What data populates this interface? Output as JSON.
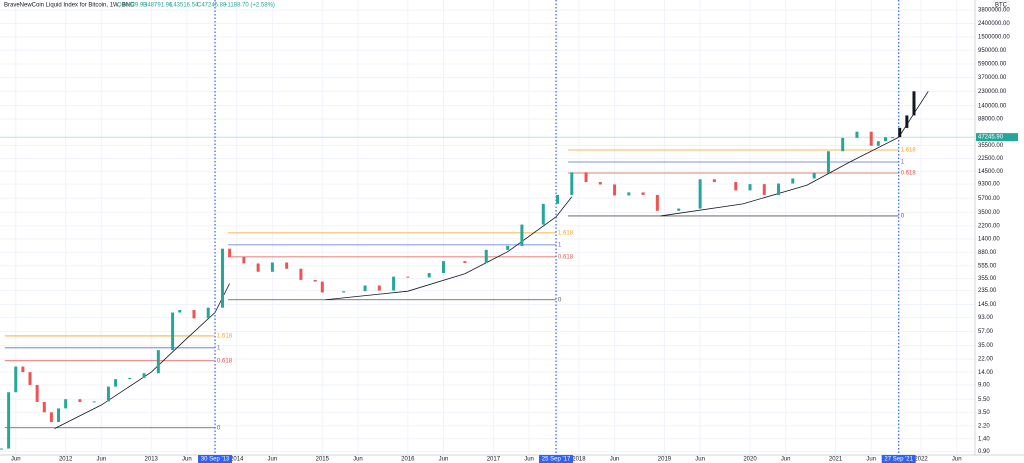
{
  "header": {
    "title": "BraveNewCoin Liquid Index for Bitcoin, 1W, BNC",
    "open": "O46039.93",
    "high": "H48791.96",
    "low": "L43516.54",
    "close": "C47245.88",
    "change": "+1188.70 (+2.58%)"
  },
  "chart_data": {
    "type": "line",
    "log_scale": true,
    "grid": true,
    "currency": "BTC",
    "up_color": "#26a69a",
    "down_color": "#ef5350",
    "x": [
      "2011-04",
      "2011-05",
      "2011-06",
      "2011-07",
      "2011-08",
      "2011-09",
      "2011-10",
      "2011-11",
      "2011-12",
      "2012-01",
      "2012-03",
      "2012-05",
      "2012-07",
      "2012-08",
      "2012-10",
      "2012-12",
      "2013-02",
      "2013-04",
      "2013-05",
      "2013-07",
      "2013-09",
      "2013-11",
      "2013-12",
      "2014-02",
      "2014-04",
      "2014-06",
      "2014-08",
      "2014-10",
      "2014-12",
      "2015-01",
      "2015-04",
      "2015-07",
      "2015-09",
      "2015-11",
      "2016-01",
      "2016-04",
      "2016-06",
      "2016-09",
      "2016-12",
      "2017-03",
      "2017-05",
      "2017-08",
      "2017-10",
      "2017-12",
      "2018-02",
      "2018-04",
      "2018-06",
      "2018-08",
      "2018-10",
      "2018-12",
      "2019-03",
      "2019-06",
      "2019-08",
      "2019-11",
      "2020-01",
      "2020-03",
      "2020-05",
      "2020-07",
      "2020-10",
      "2020-12",
      "2021-02",
      "2021-04",
      "2021-06",
      "2021-07",
      "2021-08",
      "2021-09"
    ],
    "values": [
      1.0,
      7,
      17,
      14,
      9,
      5,
      3.5,
      2.5,
      4,
      5.5,
      5,
      5.1,
      8.5,
      11,
      11.5,
      13.5,
      30,
      110,
      120,
      90,
      130,
      1000,
      750,
      600,
      450,
      620,
      500,
      340,
      320,
      220,
      230,
      280,
      235,
      380,
      370,
      430,
      650,
      610,
      960,
      1100,
      2300,
      4700,
      6400,
      14000,
      10000,
      9200,
      6300,
      7000,
      6400,
      3700,
      4000,
      11000,
      10000,
      7500,
      9300,
      6400,
      9500,
      11300,
      13800,
      29000,
      46000,
      57000,
      35000,
      41000,
      47000,
      47245.88
    ],
    "projection": {
      "color": "#131722",
      "x": [
        "2021-09",
        "2021-10",
        "2021-11",
        "2021-12"
      ],
      "values": [
        47245.88,
        65000,
        100000,
        230000
      ]
    },
    "last_price": {
      "value": 47245.9,
      "label": "47245.90"
    },
    "xlim": [
      "2011-03-25",
      "2022-08-18"
    ],
    "ylim": [
      0.8,
      5400000
    ],
    "xticks": [
      {
        "value": "2011-06",
        "label": "Jun"
      },
      {
        "value": "2012-01",
        "label": "2012"
      },
      {
        "value": "2012-06",
        "label": "Jun"
      },
      {
        "value": "2013-01",
        "label": "2013"
      },
      {
        "value": "2013-06",
        "label": "Jun"
      },
      {
        "value": "2014-01",
        "label": "2014"
      },
      {
        "value": "2014-06",
        "label": "Jun"
      },
      {
        "value": "2015-01",
        "label": "2015"
      },
      {
        "value": "2015-06",
        "label": "Jun"
      },
      {
        "value": "2016-01",
        "label": "2016"
      },
      {
        "value": "2016-06",
        "label": "Jun"
      },
      {
        "value": "2017-01",
        "label": "2017"
      },
      {
        "value": "2017-06",
        "label": "Jun"
      },
      {
        "value": "2018-01",
        "label": "2018"
      },
      {
        "value": "2018-06",
        "label": "Jun"
      },
      {
        "value": "2019-01",
        "label": "2019"
      },
      {
        "value": "2019-06",
        "label": "Jun"
      },
      {
        "value": "2020-01",
        "label": "2020"
      },
      {
        "value": "2020-06",
        "label": "Jun"
      },
      {
        "value": "2021-01",
        "label": "2021"
      },
      {
        "value": "2021-06",
        "label": "Jun"
      },
      {
        "value": "2022-01",
        "label": "2022"
      },
      {
        "value": "2022-06",
        "label": "Jun"
      }
    ],
    "yticks": [
      {
        "value": 0.9,
        "label": "0.90"
      },
      {
        "value": 1.4,
        "label": "1.40"
      },
      {
        "value": 2.2,
        "label": "2.20"
      },
      {
        "value": 3.5,
        "label": "3.50"
      },
      {
        "value": 5.5,
        "label": "5.50"
      },
      {
        "value": 9,
        "label": "9.00"
      },
      {
        "value": 14,
        "label": "14.00"
      },
      {
        "value": 22,
        "label": "22.00"
      },
      {
        "value": 35,
        "label": "35.00"
      },
      {
        "value": 57,
        "label": "57.00"
      },
      {
        "value": 93,
        "label": "93.00"
      },
      {
        "value": 145,
        "label": "145.00"
      },
      {
        "value": 235,
        "label": "235.00"
      },
      {
        "value": 355,
        "label": "355.00"
      },
      {
        "value": 555,
        "label": "555.00"
      },
      {
        "value": 880,
        "label": "880.00"
      },
      {
        "value": 1400,
        "label": "1400.00"
      },
      {
        "value": 2200,
        "label": "2200.00"
      },
      {
        "value": 3500,
        "label": "3500.00"
      },
      {
        "value": 5700,
        "label": "5700.00"
      },
      {
        "value": 9300,
        "label": "9300.00"
      },
      {
        "value": 14500,
        "label": "14500.00"
      },
      {
        "value": 22500,
        "label": "22500.00"
      },
      {
        "value": 35500,
        "label": "35500.00"
      },
      {
        "value": 88000,
        "label": "88000.00"
      },
      {
        "value": 140000,
        "label": "140000.00"
      },
      {
        "value": 230000,
        "label": "230000.00"
      },
      {
        "value": 370000,
        "label": "370000.00"
      },
      {
        "value": 590000,
        "label": "590000.00"
      },
      {
        "value": 950000,
        "label": "950000.00"
      },
      {
        "value": 1500000,
        "label": "1500000.00"
      },
      {
        "value": 2400000,
        "label": "2400000.00"
      },
      {
        "value": 3800000,
        "label": "3800000.00"
      }
    ],
    "cycle_markers": [
      {
        "x": "2013-09-30",
        "label": "30 Sep '13"
      },
      {
        "x": "2017-09-25",
        "label": "25 Sep '17"
      },
      {
        "x": "2021-09-27",
        "label": "27 Sep '21"
      }
    ],
    "marker_color": "#2962ff",
    "fib_sets": [
      {
        "x": [
          "2011-04-15",
          "2013-09-30"
        ],
        "levels": [
          {
            "label": "1.618",
            "value": 49,
            "color": "#f7a21b"
          },
          {
            "label": "1",
            "value": 32.5,
            "color": "#5b6fd6"
          },
          {
            "label": "0.618",
            "value": 20.8,
            "color": "#e0524a"
          },
          {
            "label": "0",
            "value": 2.05,
            "color": "#555555"
          }
        ]
      },
      {
        "x": [
          "2013-11-25",
          "2017-09-25"
        ],
        "levels": [
          {
            "label": "1.618",
            "value": 1726,
            "color": "#f7a21b"
          },
          {
            "label": "1",
            "value": 1140,
            "color": "#5b6fd6"
          },
          {
            "label": "0.618",
            "value": 753,
            "color": "#e0524a"
          },
          {
            "label": "0",
            "value": 171,
            "color": "#555555"
          }
        ]
      },
      {
        "x": [
          "2017-11-15",
          "2021-09-27"
        ],
        "levels": [
          {
            "label": "1.618",
            "value": 30270,
            "color": "#f7a21b"
          },
          {
            "label": "1",
            "value": 20000,
            "color": "#5b6fd6"
          },
          {
            "label": "0.618",
            "value": 13680,
            "color": "#e0524a"
          },
          {
            "label": "0",
            "value": 3100,
            "color": "#555555"
          }
        ]
      }
    ],
    "curves": [
      {
        "x": [
          "2011-11-15",
          "2012-06",
          "2013-01",
          "2013-06",
          "2013-09-30",
          "2013-12"
        ],
        "values": [
          2.0,
          4.5,
          14,
          45,
          110,
          300
        ]
      },
      {
        "x": [
          "2015-01-15",
          "2016-01",
          "2016-09",
          "2017-03",
          "2017-09-25",
          "2017-12"
        ],
        "values": [
          171,
          230,
          420,
          900,
          3000,
          6000
        ]
      },
      {
        "x": [
          "2018-12-15",
          "2019-12",
          "2020-09",
          "2021-03",
          "2021-09-27",
          "2022-02"
        ],
        "values": [
          3100,
          4700,
          9000,
          20000,
          47000,
          230000
        ]
      }
    ]
  }
}
